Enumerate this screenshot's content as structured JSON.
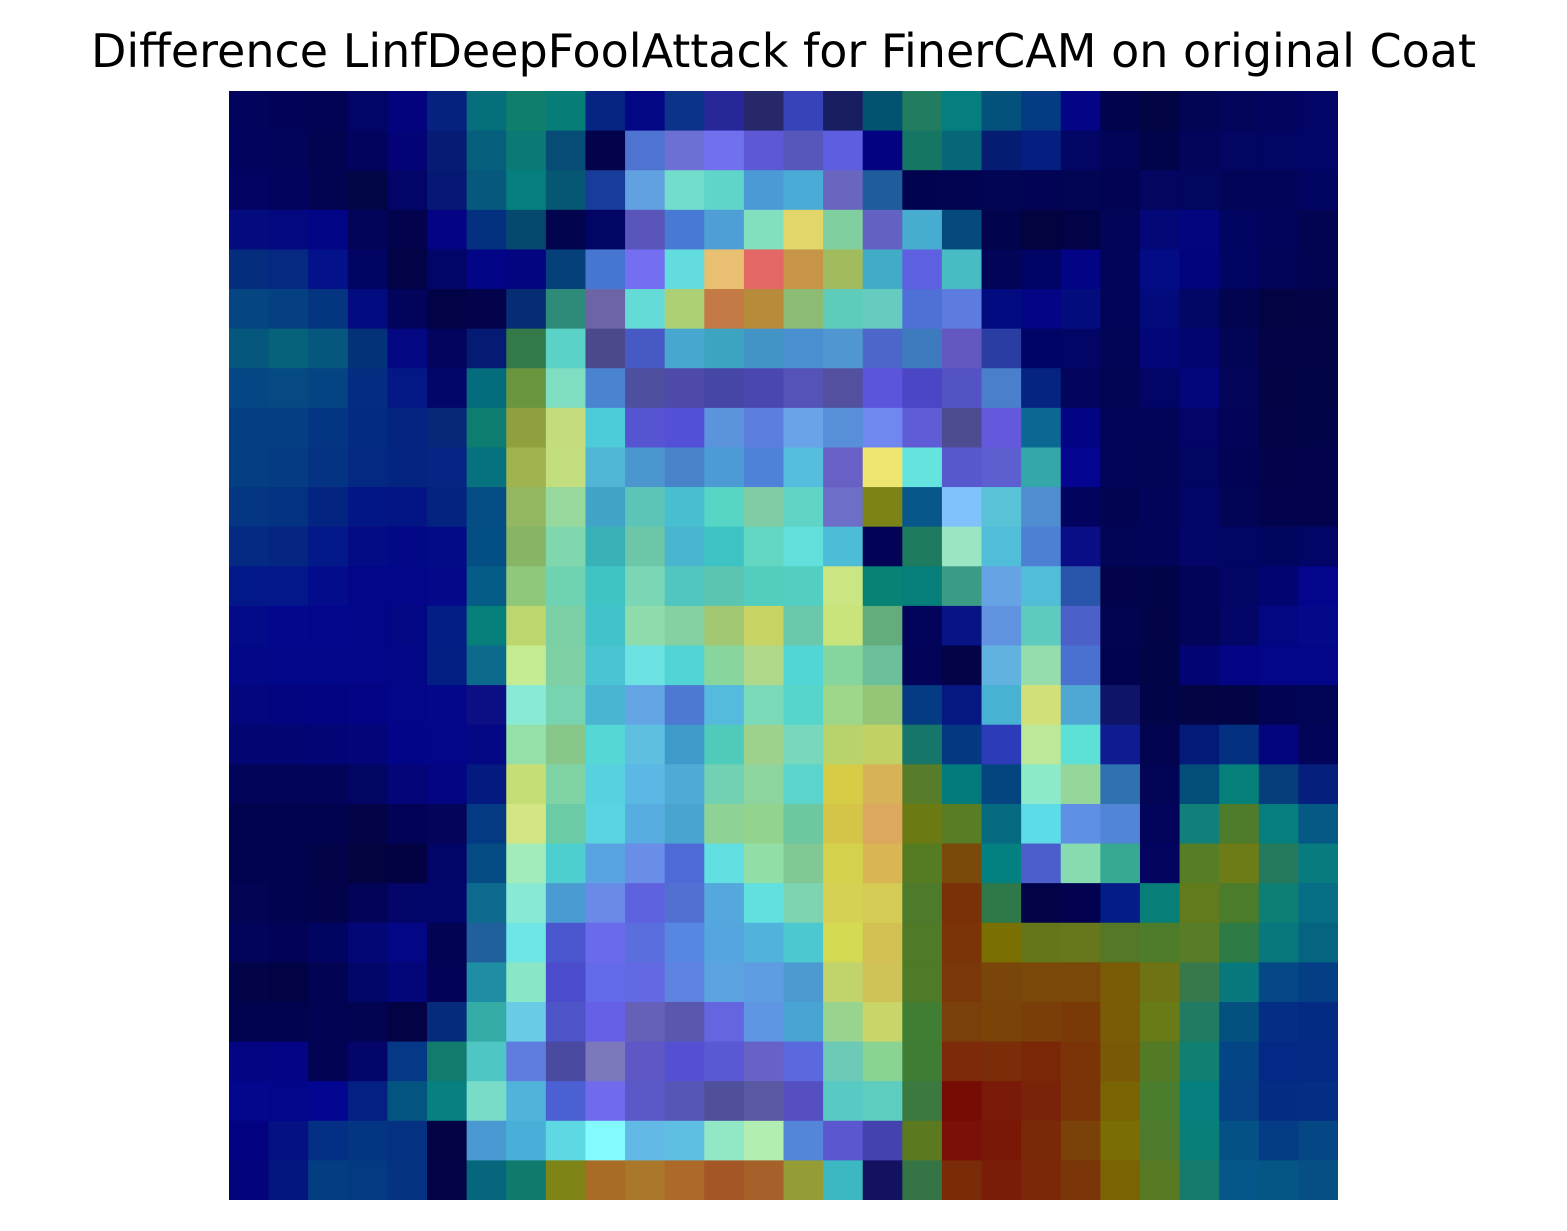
{
  "title": "Difference LinfDeepFoolAttack for FinerCAM on original Coat",
  "heatmap": {
    "rows": 28,
    "cols": 28,
    "colors_by_row": [
      [
        "#02035c",
        "#020258",
        "#020354",
        "#020566",
        "#03037e",
        "#06227f",
        "#076f7c",
        "#117d6b",
        "#077d77",
        "#062582",
        "#030783",
        "#0b3489",
        "#27279a",
        "#26286a",
        "#3743b8",
        "#181c60",
        "#03526f",
        "#227c5f",
        "#057e7f",
        "#04517c",
        "#033b84",
        "#030585",
        "#02034d",
        "#020444",
        "#020553",
        "#020559",
        "#02045f",
        "#020566"
      ],
      [
        "#02035e",
        "#02035a",
        "#020451",
        "#02035f",
        "#030377",
        "#061c74",
        "#065f7d",
        "#0c7a74",
        "#064c77",
        "#02034a",
        "#4e73d0",
        "#6c6fd3",
        "#7170ef",
        "#5c58d6",
        "#5757bb",
        "#5d5ee0",
        "#030382",
        "#157763",
        "#056777",
        "#041c72",
        "#041f80",
        "#030565",
        "#020458",
        "#02044b",
        "#020559",
        "#020561",
        "#020563",
        "#020468"
      ],
      [
        "#020362",
        "#02035e",
        "#020451",
        "#020546",
        "#030468",
        "#051874",
        "#06597d",
        "#067e7e",
        "#065771",
        "#183c9a",
        "#62a1e0",
        "#71ddca",
        "#5fd4c8",
        "#4c9ad5",
        "#4aabd6",
        "#6966bf",
        "#1f5c9c",
        "#02034e",
        "#020451",
        "#020454",
        "#020354",
        "#020454",
        "#020352",
        "#030560",
        "#03065e",
        "#020457",
        "#02045a",
        "#020462"
      ],
      [
        "#040b7f",
        "#04087f",
        "#030587",
        "#020459",
        "#02034c",
        "#030383",
        "#04317f",
        "#05496f",
        "#02044e",
        "#030565",
        "#5a55b9",
        "#487ad5",
        "#4e9fd6",
        "#82e0bf",
        "#e2d66a",
        "#80cf9f",
        "#6361c2",
        "#47add0",
        "#044a7c",
        "#02034d",
        "#02033f",
        "#020346",
        "#020457",
        "#040778",
        "#03057f",
        "#020462",
        "#02045c",
        "#020451"
      ],
      [
        "#052d7e",
        "#052880",
        "#03128a",
        "#020463",
        "#020247",
        "#020467",
        "#020585",
        "#030580",
        "#06407a",
        "#4676d2",
        "#736ff0",
        "#63dce0",
        "#e9c071",
        "#e36764",
        "#c79548",
        "#a3bb5f",
        "#42abc6",
        "#5d61e0",
        "#47bcc2",
        "#020458",
        "#020465",
        "#030485",
        "#02045a",
        "#030b85",
        "#02047c",
        "#020463",
        "#020458",
        "#020451"
      ],
      [
        "#054582",
        "#054182",
        "#043580",
        "#030b80",
        "#02035a",
        "#020347",
        "#02034b",
        "#062c73",
        "#2e8b79",
        "#6b65a5",
        "#65dbd8",
        "#aed074",
        "#c47a45",
        "#b78b3a",
        "#8bbb74",
        "#5fcbb9",
        "#65ccbf",
        "#4f70d6",
        "#5d7ce0",
        "#030b81",
        "#030585",
        "#020c7c",
        "#020457",
        "#030a7c",
        "#020765",
        "#020450",
        "#020343",
        "#020445"
      ],
      [
        "#06577d",
        "#06617b",
        "#06577d",
        "#043279",
        "#030781",
        "#02045d",
        "#041a73",
        "#337a48",
        "#5bd2c7",
        "#4c488c",
        "#4659c4",
        "#48a7cf",
        "#3ca3c1",
        "#4394c6",
        "#4a90d0",
        "#5096d1",
        "#4c66c9",
        "#3d7abe",
        "#6357c0",
        "#2a3da3",
        "#020465",
        "#020565",
        "#020456",
        "#030679",
        "#030470",
        "#020456",
        "#020447",
        "#020447"
      ],
      [
        "#054784",
        "#054a82",
        "#054483",
        "#042c80",
        "#041885",
        "#030568",
        "#056c7e",
        "#6a963f",
        "#7fdec1",
        "#4a84d0",
        "#4f4fa0",
        "#4d4aaa",
        "#4646a6",
        "#4a48b0",
        "#5553b6",
        "#52509f",
        "#5a55db",
        "#4a46c6",
        "#5353c5",
        "#4a7fcb",
        "#052481",
        "#02045d",
        "#020454",
        "#030566",
        "#03057a",
        "#020558",
        "#020445",
        "#020448"
      ],
      [
        "#053f83",
        "#053e83",
        "#043583",
        "#042b82",
        "#042481",
        "#052879",
        "#0d7c71",
        "#90a03f",
        "#c5dc7e",
        "#4dcbd6",
        "#5754d2",
        "#534fd6",
        "#5b93dd",
        "#5c7fdf",
        "#69a3e8",
        "#578fd8",
        "#7087f2",
        "#5f5cd6",
        "#4e4c90",
        "#6458dd",
        "#0b6893",
        "#030483",
        "#020457",
        "#020457",
        "#030465",
        "#020359",
        "#020447",
        "#020449"
      ],
      [
        "#053f83",
        "#053b83",
        "#043383",
        "#042982",
        "#042482",
        "#042583",
        "#06727f",
        "#a0b34e",
        "#c2de7e",
        "#51b5d6",
        "#4c96d0",
        "#4983c9",
        "#4c9bd4",
        "#4e82d8",
        "#55bddd",
        "#6960c5",
        "#efe671",
        "#64e3df",
        "#5658cb",
        "#5d5ed0",
        "#34a8a8",
        "#030590",
        "#020459",
        "#020455",
        "#030563",
        "#020354",
        "#02034a",
        "#02034c"
      ],
      [
        "#043683",
        "#043283",
        "#042482",
        "#031685",
        "#031584",
        "#042280",
        "#054e85",
        "#94b761",
        "#97d89c",
        "#42a3c8",
        "#5dc5b8",
        "#48bfd0",
        "#57d5c5",
        "#7fcca5",
        "#5fd4c6",
        "#6c6ec7",
        "#7d8417",
        "#07578b",
        "#80c2fb",
        "#5ac2d6",
        "#4f8dd0",
        "#02035e",
        "#020452",
        "#020459",
        "#020565",
        "#020456",
        "#02034c",
        "#02034c"
      ],
      [
        "#042a83",
        "#042582",
        "#03198a",
        "#030b85",
        "#030887",
        "#030c86",
        "#034e84",
        "#86b566",
        "#80d6ad",
        "#38b2b7",
        "#6cc6a7",
        "#4ab5cf",
        "#3ec3c4",
        "#64d7c3",
        "#63dfdb",
        "#4dbdd7",
        "#020256",
        "#1f7b5f",
        "#9ae6c3",
        "#50bed8",
        "#4d7fd3",
        "#0a0e86",
        "#020456",
        "#02045a",
        "#030668",
        "#030565",
        "#020560",
        "#030566"
      ],
      [
        "#031888",
        "#03168a",
        "#030d8c",
        "#030689",
        "#030689",
        "#030989",
        "#055c86",
        "#8fc87b",
        "#6fd3b1",
        "#40c3c3",
        "#7ad6b4",
        "#51c6c0",
        "#5cc5b2",
        "#53cdbd",
        "#53cfc1",
        "#cae683",
        "#078275",
        "#067e79",
        "#3b9c85",
        "#66a3e4",
        "#51bdd8",
        "#2956ab",
        "#02034a",
        "#020449",
        "#020457",
        "#030564",
        "#020472",
        "#03058d"
      ],
      [
        "#030b89",
        "#03078d",
        "#03068c",
        "#030688",
        "#030784",
        "#031e85",
        "#067f7b",
        "#bed66e",
        "#7bd0a5",
        "#42c3cb",
        "#8edcab",
        "#85d1a1",
        "#a2c873",
        "#c7d464",
        "#6bc9ab",
        "#c8e47a",
        "#63ad7d",
        "#02035a",
        "#081385",
        "#6193e1",
        "#5fcbbf",
        "#4b61c9",
        "#02044f",
        "#020349",
        "#020458",
        "#030567",
        "#030781",
        "#030989"
      ],
      [
        "#030888",
        "#030789",
        "#03078a",
        "#030689",
        "#030687",
        "#031f83",
        "#0c6a8c",
        "#c5ec92",
        "#7fd0a5",
        "#4ac3d3",
        "#6ce2e2",
        "#52d4d6",
        "#88d69e",
        "#afd989",
        "#51d5d5",
        "#85d59e",
        "#6bc09b",
        "#03035a",
        "#020447",
        "#61b2de",
        "#95ddaa",
        "#4b71d0",
        "#02034e",
        "#020448",
        "#030473",
        "#030584",
        "#030688",
        "#030688"
      ],
      [
        "#03067c",
        "#030580",
        "#030482",
        "#030584",
        "#030689",
        "#03078a",
        "#0c0e84",
        "#89ebd6",
        "#78d3b0",
        "#4ab5d2",
        "#64a6e5",
        "#4e79d2",
        "#55bade",
        "#7ad9b8",
        "#56d6cb",
        "#9ed68a",
        "#95c677",
        "#043b82",
        "#051783",
        "#48b2d3",
        "#d2e077",
        "#4ea8d3",
        "#0f1469",
        "#020449",
        "#020444",
        "#020445",
        "#020453",
        "#020455"
      ],
      [
        "#030573",
        "#030573",
        "#030577",
        "#030578",
        "#030588",
        "#030689",
        "#030784",
        "#95e0a8",
        "#87c789",
        "#54d7d5",
        "#5fbfe0",
        "#3f9cca",
        "#4fcbbc",
        "#9ed28c",
        "#77d8be",
        "#b8d26c",
        "#c2d163",
        "#16766a",
        "#053782",
        "#2c3bb7",
        "#bde79a",
        "#5de0d6",
        "#0f1c8f",
        "#020450",
        "#041a79",
        "#043082",
        "#03057c",
        "#02045a"
      ],
      [
        "#02045a",
        "#020459",
        "#02045a",
        "#030563",
        "#030578",
        "#030582",
        "#041a80",
        "#c5df76",
        "#7fd2a3",
        "#58d1de",
        "#5bb8e4",
        "#4fabd6",
        "#72d1b3",
        "#8ed49f",
        "#5bd5cb",
        "#d7cc46",
        "#d8b256",
        "#577d2a",
        "#037a7c",
        "#04457f",
        "#8ceac9",
        "#95d79b",
        "#2e73b0",
        "#020455",
        "#034d7b",
        "#06807a",
        "#053e7b",
        "#061f7d"
      ],
      [
        "#02034e",
        "#02034f",
        "#02034f",
        "#020349",
        "#020357",
        "#03045a",
        "#043a83",
        "#d2e684",
        "#6bcba4",
        "#5ad4e0",
        "#58ade0",
        "#4aa4d0",
        "#8ed395",
        "#92d48e",
        "#6dc8a0",
        "#d4c549",
        "#dca85f",
        "#6b7a13",
        "#597d24",
        "#066b80",
        "#5ddbe6",
        "#608fe6",
        "#5186d6",
        "#02035a",
        "#11807a",
        "#4f7c2b",
        "#067e7e",
        "#065985"
      ],
      [
        "#02034f",
        "#02034e",
        "#020348",
        "#02033f",
        "#020242",
        "#030468",
        "#054c85",
        "#a1ecb8",
        "#4dcfd0",
        "#5aa3e2",
        "#6a8ee8",
        "#4e6ad6",
        "#62dfe0",
        "#91dea7",
        "#82c894",
        "#d4d24c",
        "#d9b653",
        "#557c21",
        "#7a4a0a",
        "#038080",
        "#4c5ecb",
        "#86dcaf",
        "#37a992",
        "#030460",
        "#557e26",
        "#6d7c16",
        "#257a5d",
        "#087b7f"
      ],
      [
        "#030453",
        "#02034e",
        "#02034a",
        "#030458",
        "#030569",
        "#03056b",
        "#0f6a8f",
        "#88e9d5",
        "#4b9bd3",
        "#6a8ae7",
        "#5e62de",
        "#5171d2",
        "#55a8de",
        "#62e0dd",
        "#7ed3b0",
        "#d6d055",
        "#d4cc54",
        "#4d7a2b",
        "#7a3107",
        "#2f7847",
        "#020248",
        "#020250",
        "#031c88",
        "#087e79",
        "#617b1d",
        "#4b7c2c",
        "#0d7f74",
        "#076e85"
      ],
      [
        "#02035a",
        "#020356",
        "#020461",
        "#030677",
        "#030785",
        "#020353",
        "#20609c",
        "#6ee6e6",
        "#4a57cf",
        "#6a6bea",
        "#5a6edd",
        "#5787e0",
        "#55a5df",
        "#51b2dc",
        "#4cc8d0",
        "#d4da52",
        "#d3c052",
        "#4f7a28",
        "#7a3408",
        "#7a6f03",
        "#64761a",
        "#66781b",
        "#547825",
        "#4d7c2a",
        "#587c27",
        "#2f7b46",
        "#08787d",
        "#056581"
      ],
      [
        "#020348",
        "#020345",
        "#020353",
        "#030669",
        "#030678",
        "#020256",
        "#1f8da3",
        "#89e7c8",
        "#4b4ccb",
        "#646be8",
        "#6269e3",
        "#5f83e0",
        "#5ba4df",
        "#5e9de2",
        "#4d9ad1",
        "#c1d36b",
        "#cfc256",
        "#4f7a28",
        "#7a3808",
        "#7a4508",
        "#7a4808",
        "#7a4808",
        "#7a5b06",
        "#6f7314",
        "#38794b",
        "#07797d",
        "#044985",
        "#043f85"
      ],
      [
        "#02034e",
        "#02034e",
        "#020352",
        "#020351",
        "#020244",
        "#052b7d",
        "#35aba5",
        "#6acbe6",
        "#4c54c8",
        "#6660e6",
        "#6560b8",
        "#5a58ae",
        "#6565e0",
        "#5f96e4",
        "#4aa4d3",
        "#98d48d",
        "#c9d469",
        "#407e33",
        "#7a400b",
        "#7a4308",
        "#7a3f08",
        "#7a3a08",
        "#7a5c06",
        "#687b17",
        "#217b62",
        "#04517f",
        "#042e85",
        "#042b83"
      ],
      [
        "#030582",
        "#030584",
        "#020453",
        "#03056a",
        "#053886",
        "#127b6d",
        "#4dc6c4",
        "#5e7ddf",
        "#4a4aa0",
        "#7b79bc",
        "#5e58c7",
        "#554fd2",
        "#5b58d4",
        "#6763c6",
        "#5b69de",
        "#6ccab7",
        "#8ad392",
        "#407d34",
        "#7d2a0a",
        "#7a2d08",
        "#7a2708",
        "#7a3408",
        "#7a5806",
        "#537a24",
        "#117f71",
        "#044685",
        "#042886",
        "#042984"
      ],
      [
        "#03078d",
        "#03068b",
        "#030690",
        "#042083",
        "#045481",
        "#068080",
        "#78dcc9",
        "#51b3d9",
        "#4b60d3",
        "#6f6bec",
        "#5a59c7",
        "#5656b7",
        "#504f9a",
        "#5959a4",
        "#554fc2",
        "#58cac4",
        "#5ccdbe",
        "#3b7941",
        "#760d04",
        "#7a1a08",
        "#7a2308",
        "#7a3408",
        "#7a6303",
        "#4b7d2f",
        "#057f7f",
        "#044185",
        "#042c83",
        "#042e84"
      ],
      [
        "#030382",
        "#031182",
        "#032f84",
        "#033582",
        "#043182",
        "#020245",
        "#4a98d2",
        "#4aafd8",
        "#5ed8e2",
        "#82fafe",
        "#63b9e6",
        "#5fbfe3",
        "#92e8c5",
        "#b2eeb2",
        "#5485d9",
        "#5b57ce",
        "#4443ad",
        "#5b7a20",
        "#7a1008",
        "#7a1808",
        "#7a2908",
        "#7a4108",
        "#7a6d06",
        "#4e7a2e",
        "#087f79",
        "#045285",
        "#043d86",
        "#054784"
      ],
      [
        "#03037c",
        "#03167f",
        "#043e82",
        "#043983",
        "#043382",
        "#020246",
        "#06667b",
        "#107b6d",
        "#7e8415",
        "#a96c24",
        "#a9782a",
        "#ac6a2a",
        "#a55626",
        "#a6612a",
        "#949c35",
        "#3bb8c2",
        "#121260",
        "#357445",
        "#7a2b08",
        "#7a1d08",
        "#7a2808",
        "#7a3508",
        "#7a6303",
        "#597a24",
        "#167a6b",
        "#045788",
        "#055585",
        "#054f82"
      ]
    ]
  }
}
